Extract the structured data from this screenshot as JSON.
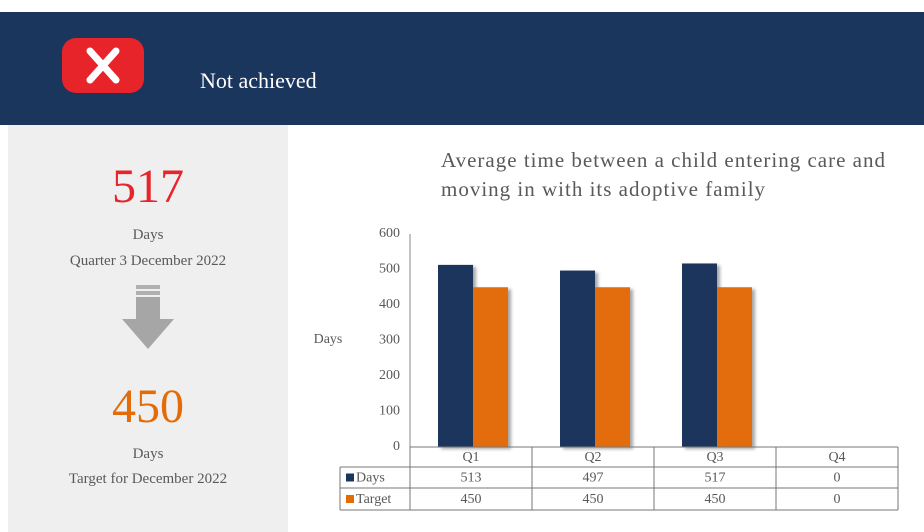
{
  "header": {
    "status": "Not achieved"
  },
  "summary": {
    "value": 517,
    "unit": "Days",
    "period": "Quarter 3 December 2022",
    "target": 450,
    "target_unit": "Days",
    "target_period": "Target for December 2022"
  },
  "chart_data": {
    "type": "bar",
    "title": "Average time between a child entering care and moving in with its adoptive family",
    "y_label": "Days",
    "categories": [
      "Q1",
      "Q2",
      "Q3",
      "Q4"
    ],
    "series": [
      {
        "name": "Days",
        "color": "#1b365d",
        "values": [
          513,
          497,
          517,
          0
        ]
      },
      {
        "name": "Target",
        "color": "#e36c09",
        "values": [
          450,
          450,
          450,
          0
        ]
      }
    ],
    "ylim": [
      0,
      600
    ],
    "yticks": [
      0,
      100,
      200,
      300,
      400,
      500,
      600
    ]
  }
}
